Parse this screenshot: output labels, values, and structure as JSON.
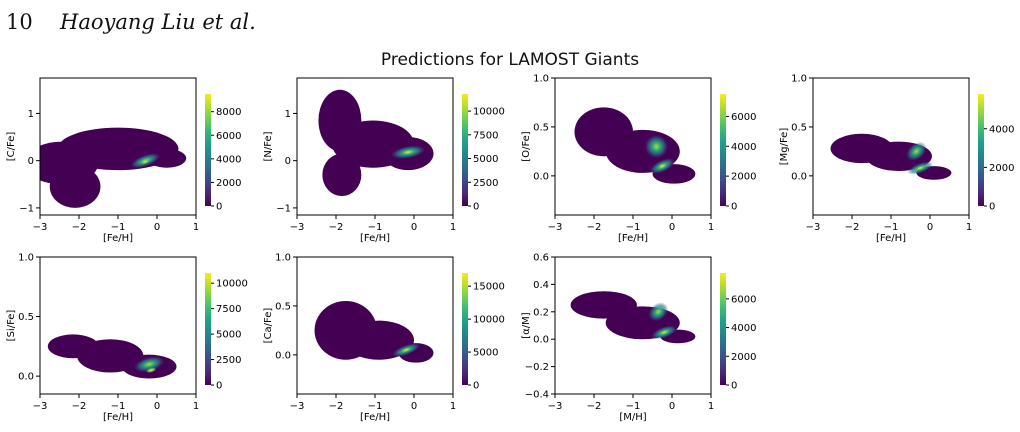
{
  "header": {
    "page_number": "10",
    "authors": "Haoyang Liu et al."
  },
  "figure": {
    "title": "Predictions for LAMOST Giants"
  },
  "colors": {
    "viridis": [
      "#440154",
      "#482878",
      "#3e4989",
      "#31688e",
      "#26828e",
      "#1f9e89",
      "#35b779",
      "#6ece58",
      "#b5de2b",
      "#fde725"
    ]
  },
  "chart_data": [
    {
      "type": "heatmap",
      "panel": "C/Fe",
      "xlabel": "[Fe/H]",
      "ylabel": "[C/Fe]",
      "xlim": [
        -3,
        1
      ],
      "ylim": [
        -1.15,
        1.75
      ],
      "xticks": [
        {
          "v": -3,
          "t": "−3"
        },
        {
          "v": -2,
          "t": "−2"
        },
        {
          "v": -1,
          "t": "−1"
        },
        {
          "v": 0,
          "t": "0"
        },
        {
          "v": 1,
          "t": "1"
        }
      ],
      "yticks": [
        {
          "v": -1,
          "t": "−1"
        },
        {
          "v": 0,
          "t": "0"
        },
        {
          "v": 1,
          "t": "1"
        }
      ],
      "cbar_max": 9500,
      "cbar_ticks": [
        0,
        2000,
        4000,
        6000,
        8000
      ],
      "body": [
        [
          -2.45,
          -0.05,
          0.95,
          0.45
        ],
        [
          -1.0,
          0.25,
          1.55,
          0.45
        ],
        [
          -2.1,
          -0.55,
          0.65,
          0.45
        ],
        [
          0.25,
          0.05,
          0.5,
          0.2
        ]
      ],
      "peaks": [
        {
          "x": -0.3,
          "y": 0.0,
          "rx": 0.4,
          "ry": 0.12,
          "rot": 20
        },
        {
          "x": -0.3,
          "y": -0.02,
          "rx": 0.12,
          "ry": 0.05,
          "rot": 20
        }
      ]
    },
    {
      "type": "heatmap",
      "panel": "N/Fe",
      "xlabel": "[Fe/H]",
      "ylabel": "[N/Fe]",
      "xlim": [
        -3,
        1
      ],
      "ylim": [
        -1.15,
        1.75
      ],
      "xticks": [
        {
          "v": -3,
          "t": "−3"
        },
        {
          "v": -2,
          "t": "−2"
        },
        {
          "v": -1,
          "t": "−1"
        },
        {
          "v": 0,
          "t": "0"
        },
        {
          "v": 1,
          "t": "1"
        }
      ],
      "yticks": [
        {
          "v": -1,
          "t": "−1"
        },
        {
          "v": 0,
          "t": "0"
        },
        {
          "v": 1,
          "t": "1"
        }
      ],
      "cbar_max": 11800,
      "cbar_ticks": [
        0,
        2500,
        5000,
        7500,
        10000
      ],
      "body": [
        [
          -1.9,
          0.85,
          0.55,
          0.65
        ],
        [
          -1.05,
          0.35,
          1.05,
          0.5
        ],
        [
          -0.15,
          0.15,
          0.65,
          0.35
        ],
        [
          -1.85,
          -0.3,
          0.5,
          0.45
        ]
      ],
      "peaks": [
        {
          "x": -0.15,
          "y": 0.18,
          "rx": 0.45,
          "ry": 0.13,
          "rot": 10
        },
        {
          "x": -0.15,
          "y": 0.18,
          "rx": 0.15,
          "ry": 0.05,
          "rot": 10
        }
      ]
    },
    {
      "type": "heatmap",
      "panel": "O/Fe",
      "xlabel": "[Fe/H]",
      "ylabel": "[O/Fe]",
      "xlim": [
        -3,
        1
      ],
      "ylim": [
        -0.4,
        1.0
      ],
      "xticks": [
        {
          "v": -3,
          "t": "−3"
        },
        {
          "v": -2,
          "t": "−2"
        },
        {
          "v": -1,
          "t": "−1"
        },
        {
          "v": 0,
          "t": "0"
        },
        {
          "v": 1,
          "t": "1"
        }
      ],
      "yticks": [
        {
          "v": 0,
          "t": "0.0"
        },
        {
          "v": 0.5,
          "t": "0.5"
        },
        {
          "v": 1,
          "t": "1.0"
        }
      ],
      "cbar_max": 7500,
      "cbar_ticks": [
        0,
        2000,
        4000,
        6000
      ],
      "body": [
        [
          -1.75,
          0.45,
          0.75,
          0.25
        ],
        [
          -0.75,
          0.25,
          0.95,
          0.22
        ],
        [
          0.05,
          0.02,
          0.55,
          0.1
        ]
      ],
      "peaks": [
        {
          "x": -0.4,
          "y": 0.3,
          "rx": 0.3,
          "ry": 0.12,
          "rot": 50
        },
        {
          "x": -0.25,
          "y": 0.1,
          "rx": 0.35,
          "ry": 0.06,
          "rot": 25
        },
        {
          "x": -0.25,
          "y": 0.1,
          "rx": 0.12,
          "ry": 0.025,
          "rot": 25
        }
      ]
    },
    {
      "type": "heatmap",
      "panel": "Mg/Fe",
      "xlabel": "[Fe/H]",
      "ylabel": "[Mg/Fe]",
      "xlim": [
        -3,
        1
      ],
      "ylim": [
        -0.4,
        1.0
      ],
      "xticks": [
        {
          "v": -3,
          "t": "−3"
        },
        {
          "v": -2,
          "t": "−2"
        },
        {
          "v": -1,
          "t": "−1"
        },
        {
          "v": 0,
          "t": "0"
        },
        {
          "v": 1,
          "t": "1"
        }
      ],
      "yticks": [
        {
          "v": 0,
          "t": "0.0"
        },
        {
          "v": 0.5,
          "t": "0.5"
        },
        {
          "v": 1,
          "t": "1.0"
        }
      ],
      "cbar_max": 5800,
      "cbar_ticks": [
        0,
        2000,
        4000
      ],
      "body": [
        [
          -1.75,
          0.28,
          0.8,
          0.15
        ],
        [
          -0.8,
          0.2,
          0.85,
          0.15
        ],
        [
          0.1,
          0.03,
          0.45,
          0.07
        ]
      ],
      "peaks": [
        {
          "x": -0.35,
          "y": 0.25,
          "rx": 0.3,
          "ry": 0.08,
          "rot": 40
        },
        {
          "x": -0.25,
          "y": 0.08,
          "rx": 0.35,
          "ry": 0.05,
          "rot": 20
        },
        {
          "x": -0.25,
          "y": 0.08,
          "rx": 0.12,
          "ry": 0.02,
          "rot": 20
        }
      ]
    },
    {
      "type": "heatmap",
      "panel": "Si/Fe",
      "xlabel": "[Fe/H]",
      "ylabel": "[Si/Fe]",
      "xlim": [
        -3,
        1
      ],
      "ylim": [
        -0.15,
        1.0
      ],
      "xticks": [
        {
          "v": -3,
          "t": "−3"
        },
        {
          "v": -2,
          "t": "−2"
        },
        {
          "v": -1,
          "t": "−1"
        },
        {
          "v": 0,
          "t": "0"
        },
        {
          "v": 1,
          "t": "1"
        }
      ],
      "yticks": [
        {
          "v": 0,
          "t": "0.0"
        },
        {
          "v": 0.5,
          "t": "0.5"
        },
        {
          "v": 1,
          "t": "1.0"
        }
      ],
      "cbar_max": 11000,
      "cbar_ticks": [
        0,
        2500,
        5000,
        7500,
        10000
      ],
      "body": [
        [
          -2.15,
          0.25,
          0.65,
          0.1
        ],
        [
          -1.2,
          0.17,
          0.85,
          0.14
        ],
        [
          -0.2,
          0.08,
          0.7,
          0.1
        ]
      ],
      "peaks": [
        {
          "x": -0.2,
          "y": 0.1,
          "rx": 0.4,
          "ry": 0.06,
          "rot": 15
        },
        {
          "x": -0.15,
          "y": 0.05,
          "rx": 0.14,
          "ry": 0.02,
          "rot": 15
        }
      ]
    },
    {
      "type": "heatmap",
      "panel": "Ca/Fe",
      "xlabel": "[Fe/H]",
      "ylabel": "[Ca/Fe]",
      "xlim": [
        -3,
        1
      ],
      "ylim": [
        -0.4,
        1.0
      ],
      "xticks": [
        {
          "v": -3,
          "t": "−3"
        },
        {
          "v": -2,
          "t": "−2"
        },
        {
          "v": -1,
          "t": "−1"
        },
        {
          "v": 0,
          "t": "0"
        },
        {
          "v": 1,
          "t": "1"
        }
      ],
      "yticks": [
        {
          "v": 0,
          "t": "0.0"
        },
        {
          "v": 0.5,
          "t": "0.5"
        },
        {
          "v": 1,
          "t": "1.0"
        }
      ],
      "cbar_max": 17000,
      "cbar_ticks": [
        0,
        5000,
        10000,
        15000
      ],
      "body": [
        [
          -1.75,
          0.25,
          0.8,
          0.3
        ],
        [
          -0.9,
          0.15,
          0.9,
          0.2
        ],
        [
          0.05,
          0.02,
          0.45,
          0.1
        ]
      ],
      "peaks": [
        {
          "x": -0.2,
          "y": 0.05,
          "rx": 0.38,
          "ry": 0.05,
          "rot": 20
        },
        {
          "x": -0.2,
          "y": 0.05,
          "rx": 0.14,
          "ry": 0.02,
          "rot": 20
        }
      ]
    },
    {
      "type": "heatmap",
      "panel": "alpha/M",
      "xlabel": "[M/H]",
      "ylabel": "[α/M]",
      "xlim": [
        -3,
        1
      ],
      "ylim": [
        -0.4,
        0.6
      ],
      "xticks": [
        {
          "v": -3,
          "t": "−3"
        },
        {
          "v": -2,
          "t": "−2"
        },
        {
          "v": -1,
          "t": "−1"
        },
        {
          "v": 0,
          "t": "0"
        },
        {
          "v": 1,
          "t": "1"
        }
      ],
      "yticks": [
        {
          "v": -0.4,
          "t": "−0.4"
        },
        {
          "v": -0.2,
          "t": "−0.2"
        },
        {
          "v": 0,
          "t": "0.0"
        },
        {
          "v": 0.2,
          "t": "0.2"
        },
        {
          "v": 0.4,
          "t": "0.4"
        },
        {
          "v": 0.6,
          "t": "0.6"
        }
      ],
      "cbar_max": 7800,
      "cbar_ticks": [
        0,
        2000,
        4000,
        6000
      ],
      "body": [
        [
          -1.75,
          0.25,
          0.85,
          0.1
        ],
        [
          -0.75,
          0.12,
          0.95,
          0.12
        ],
        [
          0.15,
          0.02,
          0.45,
          0.05
        ]
      ],
      "peaks": [
        {
          "x": -0.35,
          "y": 0.2,
          "rx": 0.28,
          "ry": 0.06,
          "rot": 40
        },
        {
          "x": -0.2,
          "y": 0.05,
          "rx": 0.35,
          "ry": 0.04,
          "rot": 20
        },
        {
          "x": -0.2,
          "y": 0.05,
          "rx": 0.12,
          "ry": 0.015,
          "rot": 20
        }
      ]
    }
  ]
}
